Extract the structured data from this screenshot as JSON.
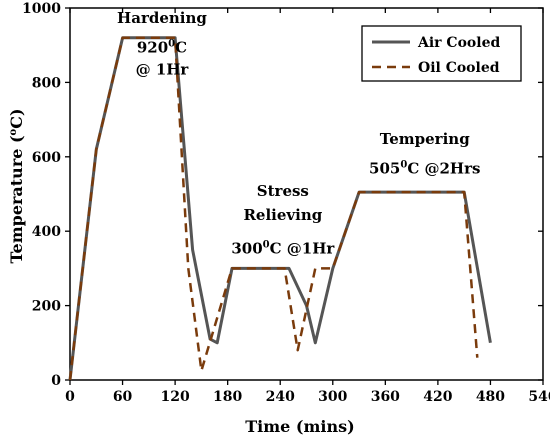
{
  "chart_data": {
    "type": "line",
    "xlabel": "Time (mins)",
    "ylabel_main": "Temperature (",
    "ylabel_sup": "o",
    "ylabel_end": "C)",
    "xlim": [
      0,
      540
    ],
    "ylim": [
      0,
      1000
    ],
    "x_ticks": [
      0,
      60,
      120,
      180,
      240,
      300,
      360,
      420,
      480,
      540
    ],
    "y_ticks": [
      0,
      200,
      400,
      600,
      800,
      1000
    ],
    "grid": false,
    "legend_position": "top-right",
    "series": [
      {
        "name": "Air Cooled",
        "color": "#555555",
        "style": "solid",
        "x": [
          0,
          30,
          60,
          120,
          140,
          160,
          168,
          185,
          250,
          270,
          280,
          300,
          330,
          450,
          480
        ],
        "y": [
          0,
          620,
          920,
          920,
          350,
          110,
          100,
          300,
          300,
          200,
          100,
          300,
          505,
          505,
          100
        ]
      },
      {
        "name": "Oil Cooled",
        "color": "#7a3b0c",
        "style": "dashed",
        "x": [
          0,
          30,
          60,
          120,
          135,
          150,
          185,
          245,
          260,
          280,
          300,
          330,
          450,
          465
        ],
        "y": [
          0,
          620,
          920,
          920,
          300,
          25,
          300,
          300,
          80,
          300,
          300,
          505,
          505,
          60
        ]
      }
    ],
    "annotations": [
      {
        "id": "hardening-title",
        "lines": [
          "Hardening"
        ],
        "x": 105,
        "y": 960
      },
      {
        "id": "hardening-detail",
        "parts": [
          "920",
          "0",
          "C"
        ],
        "line2": "@ 1Hr",
        "x": 105,
        "y": 880
      },
      {
        "id": "stress-title",
        "lines": [
          "Stress",
          "Relieving"
        ],
        "x": 243,
        "y": 495
      },
      {
        "id": "stress-detail",
        "parts": [
          "300",
          "0",
          "C @1Hr"
        ],
        "x": 243,
        "y": 340
      },
      {
        "id": "tempering-title",
        "lines": [
          "Tempering"
        ],
        "x": 405,
        "y": 635
      },
      {
        "id": "tempering-detail",
        "parts": [
          "505",
          "0",
          "C @2Hrs"
        ],
        "x": 405,
        "y": 555
      }
    ]
  }
}
